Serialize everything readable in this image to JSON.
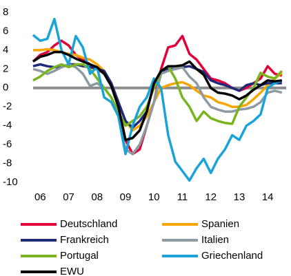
{
  "chart_data": {
    "type": "line",
    "x": [
      2005.75,
      2006,
      2006.25,
      2006.5,
      2006.75,
      2007,
      2007.25,
      2007.5,
      2007.75,
      2008,
      2008.25,
      2008.5,
      2008.75,
      2009,
      2009.25,
      2009.5,
      2009.75,
      2010,
      2010.25,
      2010.5,
      2010.75,
      2011,
      2011.25,
      2011.5,
      2011.75,
      2012,
      2012.25,
      2012.5,
      2012.75,
      2013,
      2013.25,
      2013.5,
      2013.75,
      2014,
      2014.25,
      2014.5
    ],
    "xlim": [
      2005.75,
      2014.65
    ],
    "xticks": [
      {
        "value": 2006,
        "label": "06"
      },
      {
        "value": 2007,
        "label": "07"
      },
      {
        "value": 2008,
        "label": "08"
      },
      {
        "value": 2009,
        "label": "09"
      },
      {
        "value": 2010,
        "label": "10"
      },
      {
        "value": 2011,
        "label": "11"
      },
      {
        "value": 2012,
        "label": "12"
      },
      {
        "value": 2013,
        "label": "13"
      },
      {
        "value": 2014,
        "label": "14"
      }
    ],
    "ylim": [
      -10,
      8
    ],
    "yticks": [
      8,
      6,
      4,
      2,
      0,
      -2,
      -4,
      -6,
      -8,
      -10
    ],
    "zero_line": true,
    "series": [
      {
        "name": "Deutschland",
        "color": "#e2003b",
        "values": [
          2.8,
          3.5,
          3.8,
          4.5,
          5,
          4.5,
          3.5,
          3,
          2.5,
          2,
          1.5,
          0.5,
          -2,
          -5.5,
          -7,
          -6.5,
          -4,
          -1.5,
          2,
          4.3,
          4.5,
          5.5,
          3.6,
          3,
          2,
          1,
          0.8,
          0.5,
          0,
          -0.3,
          0,
          0.5,
          1,
          2.3,
          1.5,
          1.3
        ]
      },
      {
        "name": "Spanien",
        "color": "#f7a600",
        "values": [
          4,
          4,
          4.1,
          4,
          3.8,
          3.6,
          3.5,
          3.2,
          3,
          2.5,
          1.8,
          0.5,
          -1.5,
          -3.5,
          -4.5,
          -4,
          -3,
          -1.5,
          0,
          0.3,
          0.5,
          0.6,
          0.3,
          -0.3,
          -0.8,
          -1,
          -1.5,
          -1.7,
          -2,
          -2,
          -1.8,
          -1.2,
          -0.5,
          0.3,
          1,
          1.6
        ]
      },
      {
        "name": "Frankreich",
        "color": "#1f2a7a",
        "values": [
          2.3,
          2.5,
          2.3,
          2.2,
          2.2,
          2.5,
          2.5,
          2.3,
          2.2,
          2,
          1.8,
          0.5,
          -1.5,
          -3.5,
          -4.2,
          -3.5,
          -2.5,
          0.5,
          1.8,
          2,
          2,
          2.2,
          2.3,
          2,
          1.7,
          0.8,
          0.5,
          0.3,
          0,
          -0.3,
          0.3,
          0.5,
          0.3,
          0.5,
          0.5,
          0.5
        ]
      },
      {
        "name": "Italien",
        "color": "#8c9aa3",
        "values": [
          2,
          1.8,
          1.5,
          1.8,
          2.2,
          2.5,
          2.2,
          1.5,
          0.2,
          0.5,
          0,
          -1,
          -3,
          -6.5,
          -7,
          -6,
          -4,
          -1.5,
          1.5,
          1.8,
          2,
          2.2,
          1.2,
          0.5,
          -1,
          -2,
          -2.3,
          -2.5,
          -2.5,
          -2.3,
          -2.2,
          -2,
          -1.5,
          -0.5,
          -0.3,
          -0.5
        ]
      },
      {
        "name": "Portugal",
        "color": "#7ab51d",
        "values": [
          0.8,
          1.2,
          1.8,
          2.2,
          2.5,
          2.2,
          2.5,
          2.5,
          2,
          1,
          0,
          -1,
          -2.5,
          -4,
          -3.5,
          -3,
          -2,
          0,
          1.8,
          2.3,
          1,
          -1,
          -2,
          -3.5,
          -2.5,
          -3.2,
          -3.5,
          -3.7,
          -3.8,
          -2,
          -1,
          0,
          1.6,
          1.2,
          1,
          1.8
        ]
      },
      {
        "name": "Griechenland",
        "color": "#1aa3d9",
        "values": [
          5.6,
          5,
          5.2,
          7.3,
          4,
          2.5,
          5.5,
          4.3,
          1.5,
          2.2,
          -1,
          -1.5,
          -3,
          -7,
          -4,
          -2,
          -1,
          1,
          0,
          -5,
          -7.8,
          -8.8,
          -9.8,
          -8.5,
          -7.5,
          -9,
          -7.5,
          -6.5,
          -5,
          -5.5,
          -4,
          -3.5,
          -2.8,
          0,
          0.5,
          0.8
        ]
      },
      {
        "name": "EWU",
        "color": "#000000",
        "values": [
          2.8,
          3.3,
          3.5,
          3.8,
          3.8,
          3.5,
          3.1,
          2.8,
          2.5,
          2.2,
          1.5,
          0.2,
          -2,
          -5.5,
          -5.3,
          -4.5,
          -2.5,
          0.5,
          1.8,
          2.3,
          2.3,
          2.4,
          2.8,
          2,
          1.4,
          0,
          -0.5,
          -0.6,
          -0.8,
          -1.2,
          -0.8,
          -0.2,
          0.3,
          0.8,
          0.7,
          0.8
        ]
      }
    ]
  }
}
